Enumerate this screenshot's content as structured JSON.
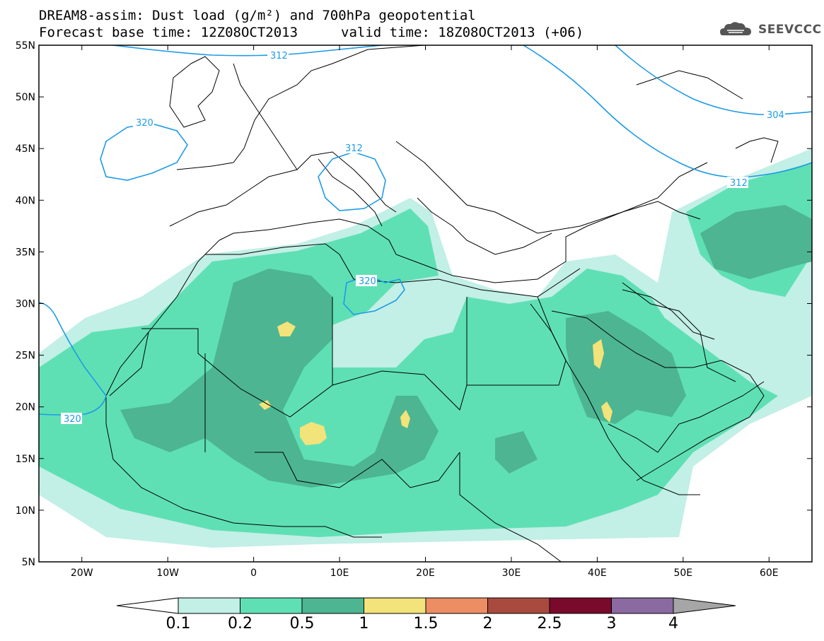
{
  "title": {
    "line1": "DREAM8-assim: Dust load (g/m²) and 700hPa geopotential",
    "line2_left": "Forecast base time: 12Z08OCT2013",
    "line2_right": "valid time: 18Z08OCT2013 (+06)"
  },
  "logo": {
    "text": "SEEVCCC",
    "icon": "cloud-logo-icon"
  },
  "map": {
    "lon_range": [
      -25,
      65
    ],
    "lat_range": [
      5,
      55
    ],
    "lat_ticks": [
      "5N",
      "10N",
      "15N",
      "20N",
      "25N",
      "30N",
      "35N",
      "40N",
      "45N",
      "50N",
      "55N"
    ],
    "lon_ticks": [
      "20W",
      "10W",
      "0",
      "10E",
      "20E",
      "30E",
      "40E",
      "50E",
      "60E"
    ],
    "contour_labels": [
      "312",
      "320",
      "312",
      "320",
      "320",
      "304",
      "312"
    ],
    "colors": {
      "c01": "#c2efe6",
      "c02": "#5fe0b4",
      "c05": "#4db592",
      "c10": "#f2e37a",
      "contour": "#1e9be6",
      "border": "#000000"
    }
  },
  "colorbar": {
    "labels": [
      "0.1",
      "0.2",
      "0.5",
      "1",
      "1.5",
      "2",
      "2.5",
      "3",
      "4"
    ],
    "colors": [
      "#ffffff",
      "#c2efe6",
      "#5fe0b4",
      "#4db592",
      "#f2e37a",
      "#ec8d63",
      "#a94a3e",
      "#7a0a2c",
      "#8a6aa0",
      "#a6a6a6"
    ]
  }
}
